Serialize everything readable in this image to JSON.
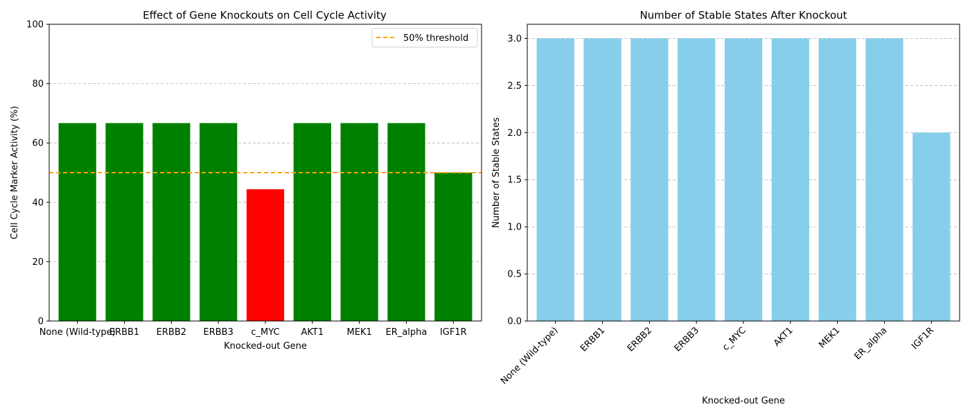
{
  "chart_data": [
    {
      "type": "bar",
      "title": "Effect of Gene Knockouts on Cell Cycle Activity",
      "xlabel": "Knocked-out Gene",
      "ylabel": "Cell Cycle Marker Activity (%)",
      "ylim": [
        0,
        100
      ],
      "yticks": [
        0,
        20,
        40,
        60,
        80,
        100
      ],
      "categories": [
        "None (Wild-type)",
        "ERBB1",
        "ERBB2",
        "ERBB3",
        "c_MYC",
        "AKT1",
        "MEK1",
        "ER_alpha",
        "IGF1R"
      ],
      "values": [
        66.7,
        66.7,
        66.7,
        66.7,
        44.4,
        66.7,
        66.7,
        66.7,
        50.0
      ],
      "bar_colors": [
        "#008000",
        "#008000",
        "#008000",
        "#008000",
        "#ff0000",
        "#008000",
        "#008000",
        "#008000",
        "#008000"
      ],
      "threshold": {
        "value": 50,
        "label": "50% threshold",
        "color": "#ffa500"
      },
      "grid": "y",
      "legend": "top-right"
    },
    {
      "type": "bar",
      "title": "Number of Stable States After Knockout",
      "xlabel": "Knocked-out Gene",
      "ylabel": "Number of Stable States",
      "ylim": [
        0,
        3.15
      ],
      "yticks": [
        "0.0",
        "0.5",
        "1.0",
        "1.5",
        "2.0",
        "2.5",
        "3.0"
      ],
      "categories": [
        "None (Wild-type)",
        "ERBB1",
        "ERBB2",
        "ERBB3",
        "c_MYC",
        "AKT1",
        "MEK1",
        "ER_alpha",
        "IGF1R"
      ],
      "values": [
        3,
        3,
        3,
        3,
        3,
        3,
        3,
        3,
        2
      ],
      "bar_color": "#87ceeb",
      "grid": "y",
      "xtick_rotation": 45
    }
  ]
}
